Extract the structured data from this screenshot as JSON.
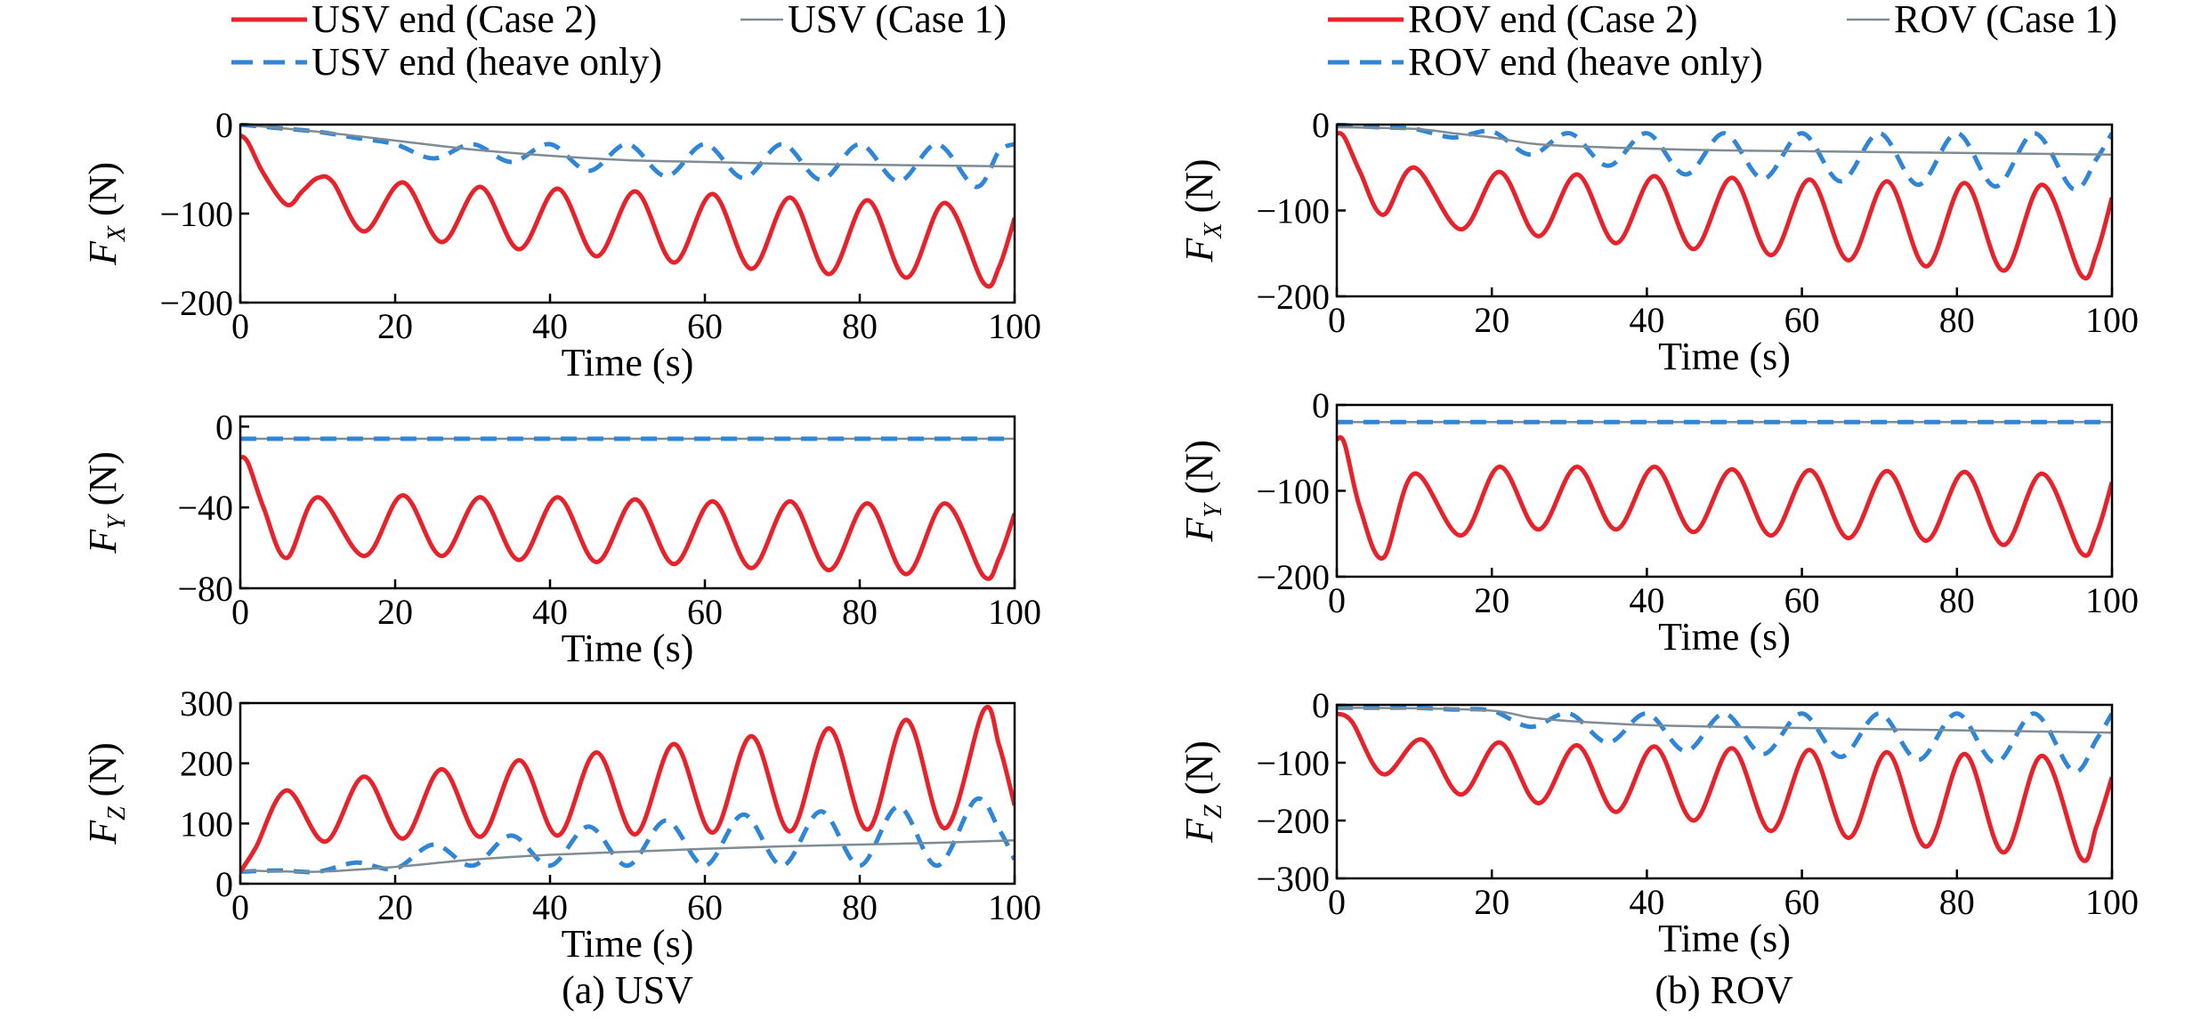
{
  "colors": {
    "case2": "#e8222a",
    "case1": "#7f8c93",
    "heave": "#2f86d6"
  },
  "panels": [
    {
      "caption": "(a) USV",
      "legend": [
        {
          "label": "USV end (Case 2)",
          "style": "case2"
        },
        {
          "label": "USV (Case 1)",
          "style": "case1"
        },
        {
          "label": "USV end (heave only)",
          "style": "heave"
        }
      ]
    },
    {
      "caption": "(b) ROV",
      "legend": [
        {
          "label": "ROV end (Case 2)",
          "style": "case2"
        },
        {
          "label": "ROV (Case 1)",
          "style": "case1"
        },
        {
          "label": "ROV end (heave only)",
          "style": "heave"
        }
      ]
    }
  ],
  "chart_data": [
    {
      "type": "line",
      "panel": "USV",
      "row": 0,
      "ylabel_main": "F",
      "ylabel_sub": "X",
      "ylabel_unit": " (N)",
      "xlabel": "Time (s)",
      "xlim": [
        0,
        100
      ],
      "ylim": [
        -200,
        0
      ],
      "xticks": [
        0,
        20,
        40,
        60,
        80,
        100
      ],
      "yticks": [
        {
          "v": 0,
          "t": "0"
        },
        {
          "v": -100,
          "t": "−100"
        },
        {
          "v": -200,
          "t": "−200"
        }
      ],
      "series": [
        {
          "style": "heave",
          "x": [
            0,
            5,
            10,
            15,
            20,
            25,
            30,
            35,
            40,
            45,
            50,
            55,
            60,
            65,
            70,
            75,
            80,
            85,
            90,
            95,
            98,
            100
          ],
          "y": [
            0,
            -4,
            -8,
            -15,
            -22,
            -38,
            -22,
            -42,
            -22,
            -52,
            -22,
            -58,
            -22,
            -60,
            -22,
            -62,
            -22,
            -64,
            -22,
            -70,
            -30,
            -22
          ]
        },
        {
          "style": "case1",
          "x": [
            0,
            10,
            20,
            30,
            40,
            50,
            60,
            70,
            80,
            90,
            100
          ],
          "y": [
            0,
            -8,
            -18,
            -28,
            -35,
            -40,
            -42,
            -44,
            -45,
            -46,
            -47
          ]
        },
        {
          "style": "case2",
          "x": [
            0,
            1,
            3,
            6,
            8,
            10,
            12,
            16,
            21,
            26,
            31,
            36,
            41,
            46,
            51,
            56,
            61,
            66,
            71,
            76,
            81,
            86,
            91,
            96,
            98,
            100
          ],
          "y": [
            -12,
            -20,
            -55,
            -90,
            -75,
            -60,
            -65,
            -120,
            -65,
            -132,
            -70,
            -140,
            -72,
            -148,
            -75,
            -155,
            -78,
            -162,
            -82,
            -168,
            -85,
            -172,
            -88,
            -178,
            -160,
            -105
          ]
        }
      ]
    },
    {
      "type": "line",
      "panel": "USV",
      "row": 1,
      "ylabel_main": "F",
      "ylabel_sub": "Y",
      "ylabel_unit": " (N)",
      "xlabel": "Time (s)",
      "xlim": [
        0,
        100
      ],
      "ylim": [
        -80,
        5
      ],
      "xticks": [
        0,
        20,
        40,
        60,
        80,
        100
      ],
      "yticks": [
        {
          "v": 0,
          "t": "0"
        },
        {
          "v": -40,
          "t": "−40"
        },
        {
          "v": -80,
          "t": "−80"
        }
      ],
      "series": [
        {
          "style": "case1",
          "x": [
            0,
            100
          ],
          "y": [
            -6,
            -6
          ]
        },
        {
          "style": "heave",
          "x": [
            0,
            100
          ],
          "y": [
            -6,
            -6
          ]
        },
        {
          "style": "case2",
          "x": [
            0,
            1,
            3,
            6,
            10,
            16,
            21,
            26,
            31,
            36,
            41,
            46,
            51,
            56,
            61,
            66,
            71,
            76,
            81,
            86,
            91,
            96,
            98,
            100
          ],
          "y": [
            -15,
            -18,
            -40,
            -65,
            -35,
            -64,
            -34,
            -64,
            -35,
            -66,
            -35,
            -67,
            -36,
            -68,
            -37,
            -70,
            -37,
            -71,
            -38,
            -73,
            -38,
            -74,
            -65,
            -43
          ]
        }
      ]
    },
    {
      "type": "line",
      "panel": "USV",
      "row": 2,
      "ylabel_main": "F",
      "ylabel_sub": "Z",
      "ylabel_unit": " (N)",
      "xlabel": "Time (s)",
      "xlim": [
        0,
        100
      ],
      "ylim": [
        0,
        300
      ],
      "xticks": [
        0,
        20,
        40,
        60,
        80,
        100
      ],
      "yticks": [
        {
          "v": 300,
          "t": "300"
        },
        {
          "v": 200,
          "t": "200"
        },
        {
          "v": 100,
          "t": "100"
        },
        {
          "v": 0,
          "t": "0"
        }
      ],
      "series": [
        {
          "style": "heave",
          "x": [
            0,
            5,
            10,
            15,
            20,
            25,
            30,
            35,
            40,
            45,
            50,
            55,
            60,
            65,
            70,
            75,
            80,
            85,
            90,
            95,
            98,
            100
          ],
          "y": [
            20,
            22,
            20,
            35,
            25,
            65,
            30,
            80,
            30,
            95,
            30,
            105,
            30,
            115,
            30,
            120,
            30,
            128,
            30,
            140,
            90,
            40
          ]
        },
        {
          "style": "case1",
          "x": [
            0,
            10,
            20,
            30,
            40,
            50,
            60,
            70,
            80,
            90,
            100
          ],
          "y": [
            22,
            20,
            28,
            40,
            48,
            53,
            58,
            62,
            65,
            68,
            72
          ]
        },
        {
          "style": "case2",
          "x": [
            0,
            2,
            6,
            11,
            16,
            21,
            26,
            31,
            36,
            41,
            46,
            51,
            56,
            61,
            66,
            71,
            76,
            81,
            86,
            91,
            96,
            98,
            100
          ],
          "y": [
            20,
            60,
            155,
            70,
            178,
            75,
            190,
            78,
            205,
            80,
            218,
            82,
            232,
            85,
            245,
            87,
            258,
            90,
            272,
            92,
            288,
            230,
            130
          ]
        }
      ]
    },
    {
      "type": "line",
      "panel": "ROV",
      "row": 0,
      "ylabel_main": "F",
      "ylabel_sub": "X",
      "ylabel_unit": " (N)",
      "xlabel": "Time (s)",
      "xlim": [
        0,
        100
      ],
      "ylim": [
        -200,
        0
      ],
      "xticks": [
        0,
        20,
        40,
        60,
        80,
        100
      ],
      "yticks": [
        {
          "v": 0,
          "t": "0"
        },
        {
          "v": -100,
          "t": "−100"
        },
        {
          "v": -200,
          "t": "−200"
        }
      ],
      "series": [
        {
          "style": "heave",
          "x": [
            0,
            5,
            10,
            15,
            20,
            25,
            30,
            35,
            40,
            45,
            50,
            55,
            60,
            65,
            70,
            75,
            80,
            85,
            90,
            95,
            98,
            100
          ],
          "y": [
            0,
            -3,
            -5,
            -15,
            -8,
            -35,
            -10,
            -48,
            -10,
            -58,
            -10,
            -63,
            -10,
            -66,
            -10,
            -70,
            -10,
            -72,
            -10,
            -75,
            -40,
            -10
          ]
        },
        {
          "style": "case1",
          "x": [
            0,
            10,
            15,
            20,
            25,
            30,
            40,
            50,
            60,
            70,
            80,
            90,
            100
          ],
          "y": [
            -3,
            -5,
            -10,
            -15,
            -22,
            -25,
            -28,
            -30,
            -31,
            -32,
            -33,
            -34,
            -35
          ]
        },
        {
          "style": "case2",
          "x": [
            0,
            1,
            3,
            6,
            10,
            16,
            21,
            26,
            31,
            36,
            41,
            46,
            51,
            56,
            61,
            66,
            71,
            76,
            81,
            86,
            91,
            96,
            98,
            100
          ],
          "y": [
            -10,
            -15,
            -55,
            -105,
            -50,
            -122,
            -55,
            -130,
            -58,
            -138,
            -60,
            -145,
            -62,
            -152,
            -64,
            -158,
            -66,
            -165,
            -68,
            -170,
            -70,
            -175,
            -150,
            -85
          ]
        }
      ]
    },
    {
      "type": "line",
      "panel": "ROV",
      "row": 1,
      "ylabel_main": "F",
      "ylabel_sub": "Y",
      "ylabel_unit": " (N)",
      "xlabel": "Time (s)",
      "xlim": [
        0,
        100
      ],
      "ylim": [
        -200,
        0
      ],
      "xticks": [
        0,
        20,
        40,
        60,
        80,
        100
      ],
      "yticks": [
        {
          "v": 0,
          "t": "0"
        },
        {
          "v": -100,
          "t": "−100"
        },
        {
          "v": -200,
          "t": "−200"
        }
      ],
      "series": [
        {
          "style": "case1",
          "x": [
            0,
            100
          ],
          "y": [
            -20,
            -20
          ]
        },
        {
          "style": "heave",
          "x": [
            0,
            100
          ],
          "y": [
            -20,
            -20
          ]
        },
        {
          "style": "case2",
          "x": [
            0,
            1,
            3,
            6,
            10,
            16,
            21,
            26,
            31,
            36,
            41,
            46,
            51,
            56,
            61,
            66,
            71,
            76,
            81,
            86,
            91,
            96,
            98,
            100
          ],
          "y": [
            -40,
            -45,
            -120,
            -178,
            -80,
            -152,
            -72,
            -145,
            -72,
            -145,
            -72,
            -148,
            -75,
            -152,
            -76,
            -155,
            -77,
            -158,
            -78,
            -163,
            -80,
            -172,
            -150,
            -90
          ]
        }
      ]
    },
    {
      "type": "line",
      "panel": "ROV",
      "row": 2,
      "ylabel_main": "F",
      "ylabel_sub": "Z",
      "ylabel_unit": " (N)",
      "xlabel": "Time (s)",
      "xlim": [
        0,
        100
      ],
      "ylim": [
        -300,
        0
      ],
      "xticks": [
        0,
        20,
        40,
        60,
        80,
        100
      ],
      "yticks": [
        {
          "v": 0,
          "t": "0"
        },
        {
          "v": -100,
          "t": "−100"
        },
        {
          "v": -200,
          "t": "−200"
        },
        {
          "v": -300,
          "t": "−300"
        }
      ],
      "series": [
        {
          "style": "heave",
          "x": [
            0,
            5,
            10,
            15,
            20,
            25,
            30,
            35,
            40,
            45,
            50,
            55,
            60,
            65,
            70,
            75,
            80,
            85,
            90,
            95,
            98,
            100
          ],
          "y": [
            -5,
            -5,
            -5,
            -8,
            -10,
            -38,
            -15,
            -65,
            -15,
            -80,
            -15,
            -85,
            -15,
            -90,
            -15,
            -95,
            -15,
            -100,
            -15,
            -115,
            -60,
            -15
          ]
        },
        {
          "style": "case1",
          "x": [
            0,
            10,
            20,
            25,
            30,
            40,
            50,
            60,
            70,
            80,
            90,
            100
          ],
          "y": [
            -5,
            -6,
            -10,
            -22,
            -28,
            -35,
            -38,
            -40,
            -42,
            -44,
            -46,
            -48
          ]
        },
        {
          "style": "case2",
          "x": [
            0,
            2,
            6,
            11,
            16,
            21,
            26,
            31,
            36,
            41,
            46,
            51,
            56,
            61,
            66,
            71,
            76,
            81,
            86,
            91,
            96,
            98,
            100
          ],
          "y": [
            -15,
            -30,
            -120,
            -60,
            -155,
            -65,
            -170,
            -70,
            -185,
            -72,
            -200,
            -75,
            -218,
            -78,
            -230,
            -82,
            -245,
            -85,
            -255,
            -88,
            -265,
            -210,
            -125
          ]
        }
      ]
    }
  ]
}
